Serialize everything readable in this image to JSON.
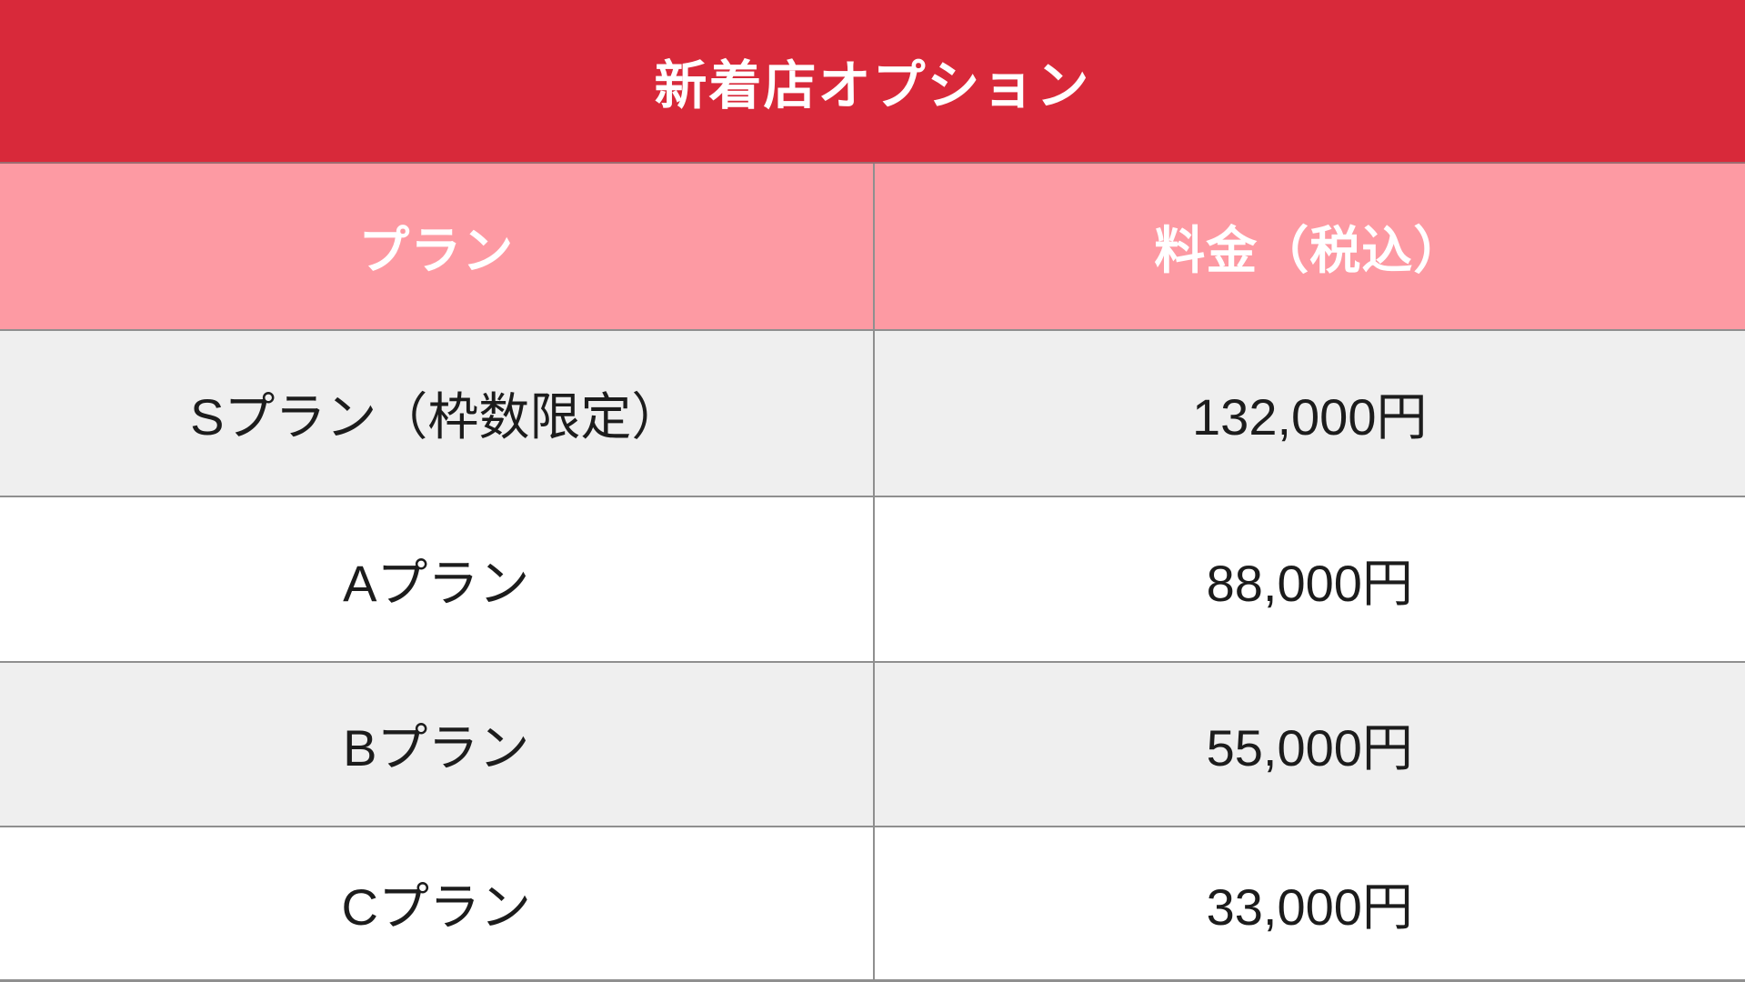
{
  "table": {
    "title": "新着店オプション",
    "columns": [
      "プラン",
      "料金（税込）"
    ],
    "rows": [
      {
        "plan": "Sプラン（枠数限定）",
        "price": "132,000円"
      },
      {
        "plan": "Aプラン",
        "price": "88,000円"
      },
      {
        "plan": "Bプラン",
        "price": "55,000円"
      },
      {
        "plan": "Cプラン",
        "price": "33,000円"
      }
    ]
  },
  "colors": {
    "title_bar_red": "#d8293a",
    "header_pink": "#fd9aa3",
    "row_alt_gray": "#efefef",
    "row_white": "#ffffff",
    "grid_line_gray": "#8f8f8f",
    "header_text": "#ffffff",
    "body_text": "#1c1c1c"
  },
  "chart_data": {
    "type": "table",
    "title": "新着店オプション",
    "columns": [
      "プラン",
      "料金（税込）"
    ],
    "rows": [
      [
        "Sプラン（枠数限定）",
        "132,000円"
      ],
      [
        "Aプラン",
        "88,000円"
      ],
      [
        "Bプラン",
        "55,000円"
      ],
      [
        "Cプラン",
        "33,000円"
      ]
    ],
    "prices_jpy": [
      132000,
      88000,
      55000,
      33000
    ]
  }
}
